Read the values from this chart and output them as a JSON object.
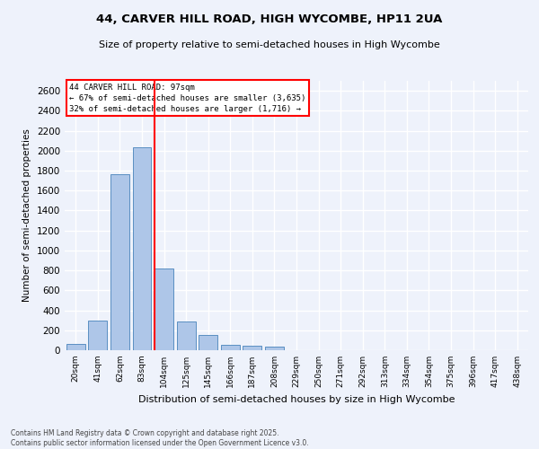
{
  "title1": "44, CARVER HILL ROAD, HIGH WYCOMBE, HP11 2UA",
  "title2": "Size of property relative to semi-detached houses in High Wycombe",
  "xlabel": "Distribution of semi-detached houses by size in High Wycombe",
  "ylabel": "Number of semi-detached properties",
  "categories": [
    "20sqm",
    "41sqm",
    "62sqm",
    "83sqm",
    "104sqm",
    "125sqm",
    "145sqm",
    "166sqm",
    "187sqm",
    "208sqm",
    "229sqm",
    "250sqm",
    "271sqm",
    "292sqm",
    "313sqm",
    "334sqm",
    "354sqm",
    "375sqm",
    "396sqm",
    "417sqm",
    "438sqm"
  ],
  "values": [
    60,
    300,
    1760,
    2030,
    820,
    285,
    155,
    50,
    45,
    35,
    0,
    0,
    0,
    0,
    0,
    0,
    0,
    0,
    0,
    0,
    0
  ],
  "bar_color": "#aec6e8",
  "bar_edge_color": "#5a8fc2",
  "vline_color": "red",
  "vline_index": 4,
  "annotation_title": "44 CARVER HILL ROAD: 97sqm",
  "annotation_line1": "← 67% of semi-detached houses are smaller (3,635)",
  "annotation_line2": "32% of semi-detached houses are larger (1,716) →",
  "annotation_box_color": "red",
  "ylim": [
    0,
    2700
  ],
  "yticks": [
    0,
    200,
    400,
    600,
    800,
    1000,
    1200,
    1400,
    1600,
    1800,
    2000,
    2200,
    2400,
    2600
  ],
  "footer1": "Contains HM Land Registry data © Crown copyright and database right 2025.",
  "footer2": "Contains public sector information licensed under the Open Government Licence v3.0.",
  "bg_color": "#eef2fb",
  "grid_color": "#ffffff"
}
